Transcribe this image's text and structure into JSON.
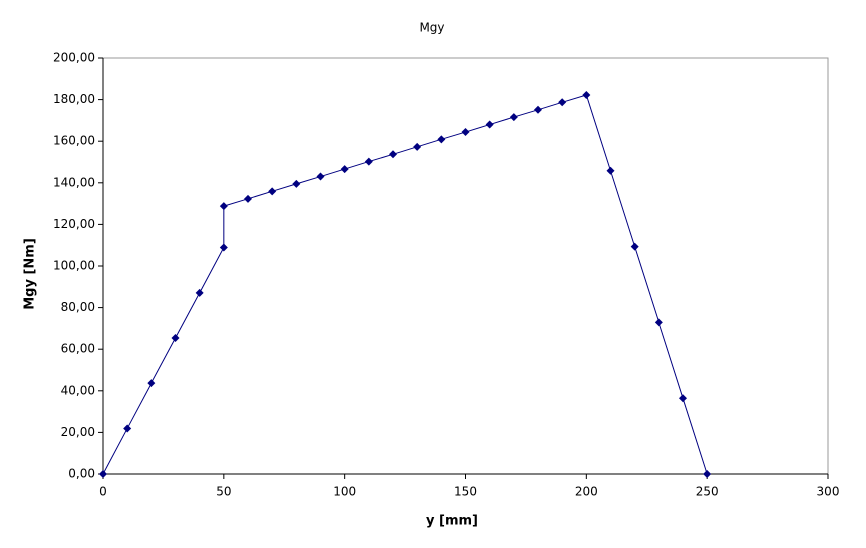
{
  "chart_data": {
    "type": "line",
    "title": "Mgy",
    "x_label": "y [mm]",
    "y_label": "Mgy [Nm]",
    "x": [
      0,
      10,
      20,
      30,
      40,
      50,
      50,
      60,
      70,
      80,
      90,
      100,
      110,
      120,
      130,
      140,
      150,
      160,
      170,
      180,
      190,
      200,
      210,
      220,
      230,
      240,
      250
    ],
    "values": [
      0,
      21.9,
      43.7,
      65.4,
      87.1,
      108.9,
      128.8,
      132.3,
      135.9,
      139.5,
      143.0,
      146.6,
      150.2,
      153.7,
      157.3,
      160.9,
      164.4,
      168.0,
      171.6,
      175.1,
      178.7,
      182.2,
      145.8,
      109.3,
      72.9,
      36.4,
      0
    ],
    "color": "#000080",
    "xlim": [
      0,
      300
    ],
    "xticks": [
      0,
      50,
      100,
      150,
      200,
      250,
      300
    ],
    "ylim": [
      0,
      200
    ],
    "yticks": [
      {
        "value": 0,
        "label": "0,00"
      },
      {
        "value": 20,
        "label": "20,00"
      },
      {
        "value": 40,
        "label": "40,00"
      },
      {
        "value": 60,
        "label": "60,00"
      },
      {
        "value": 80,
        "label": "80,00"
      },
      {
        "value": 100,
        "label": "100,00"
      },
      {
        "value": 120,
        "label": "120,00"
      },
      {
        "value": 140,
        "label": "140,00"
      },
      {
        "value": 160,
        "label": "160,00"
      },
      {
        "value": 180,
        "label": "180,00"
      },
      {
        "value": 200,
        "label": "200,00"
      }
    ],
    "grid": false
  }
}
